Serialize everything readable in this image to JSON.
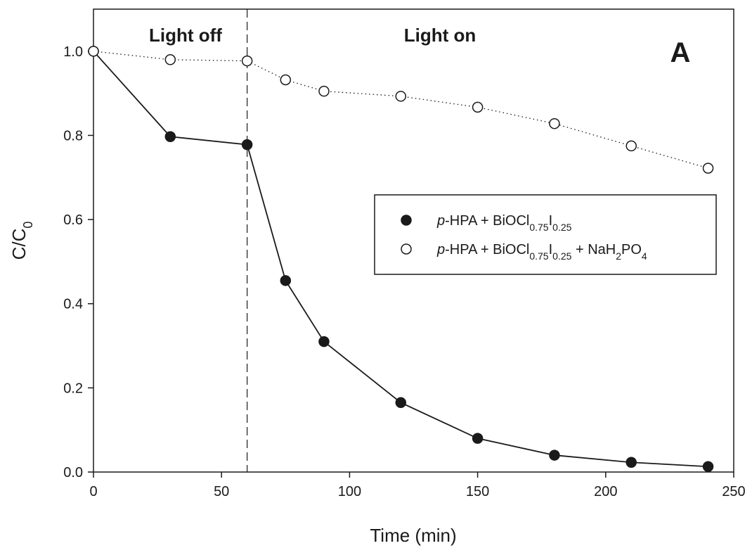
{
  "chart_data": {
    "type": "line",
    "panel_label": "A",
    "xlabel": "Time (min)",
    "ylabel": {
      "main": "C/C",
      "sub": "0"
    },
    "xlim": [
      0,
      250
    ],
    "ylim": [
      0,
      1.1
    ],
    "x_ticks": [
      "0",
      "50",
      "100",
      "150",
      "200",
      "250"
    ],
    "y_ticks": [
      "0.0",
      "0.2",
      "0.4",
      "0.6",
      "0.8",
      "1.0"
    ],
    "x_tick_values": [
      0,
      50,
      100,
      150,
      200,
      250
    ],
    "y_tick_values": [
      0,
      0.2,
      0.4,
      0.6,
      0.8,
      1.0
    ],
    "grid": false,
    "legend_position": "right",
    "annotations": {
      "light_off": "Light off",
      "light_on": "Light on",
      "divider_x": 60
    },
    "series": [
      {
        "key": "with_catalyst",
        "marker": "filled-circle",
        "line_style": "solid",
        "color": "#1a1a1a",
        "x": [
          0,
          30,
          60,
          75,
          90,
          120,
          150,
          180,
          210,
          240
        ],
        "y": [
          1.0,
          0.797,
          0.778,
          0.455,
          0.31,
          0.165,
          0.08,
          0.04,
          0.023,
          0.013
        ]
      },
      {
        "key": "with_nah2po4",
        "marker": "open-circle",
        "line_style": "dotted",
        "color": "#1a1a1a",
        "x": [
          0,
          30,
          60,
          75,
          90,
          120,
          150,
          180,
          210,
          240
        ],
        "y": [
          1.0,
          0.98,
          0.977,
          0.932,
          0.905,
          0.893,
          0.867,
          0.828,
          0.775,
          0.722
        ]
      }
    ],
    "legend": [
      {
        "italic": "p",
        "text": "-HPA + BiOCl",
        "sub1": "0.75",
        "mid": "I",
        "sub2": "0.25",
        "tail": "",
        "sub3": "",
        "end": ""
      },
      {
        "italic": "p",
        "text": "-HPA + BiOCl",
        "sub1": "0.75",
        "mid": "I",
        "sub2": "0.25",
        "tail": " + NaH",
        "sub3": "2",
        "end": "PO",
        "sub4": "4"
      }
    ]
  }
}
